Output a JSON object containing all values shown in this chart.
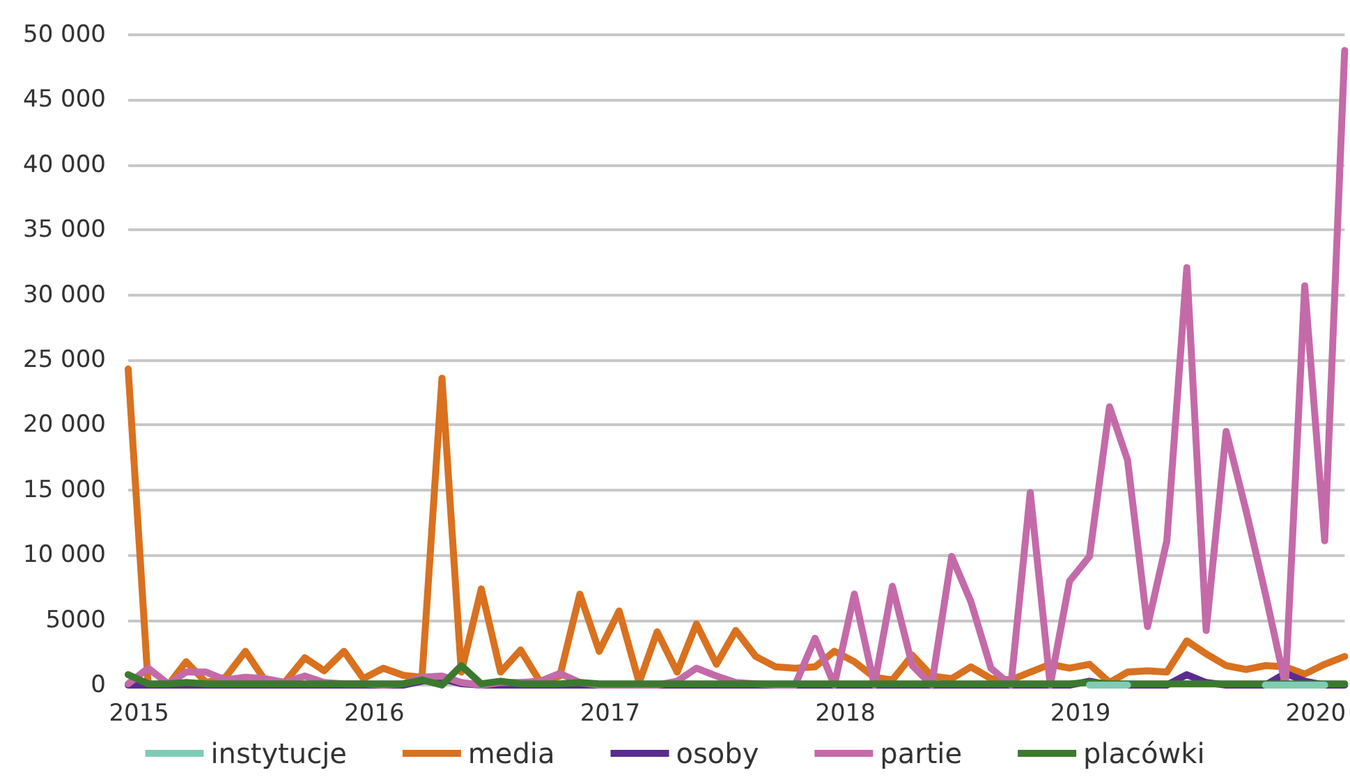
{
  "chart_data": {
    "type": "line",
    "x": [
      "2014-12-15",
      "2015-01-15",
      "2015-02-15",
      "2015-03-15",
      "2015-04-15",
      "2015-05-15",
      "2015-06-15",
      "2015-07-15",
      "2015-08-15",
      "2015-09-15",
      "2015-10-15",
      "2015-11-15",
      "2015-12-15",
      "2016-01-15",
      "2016-02-15",
      "2016-03-15",
      "2016-04-15",
      "2016-05-15",
      "2016-06-15",
      "2016-07-15",
      "2016-08-15",
      "2016-09-15",
      "2016-10-15",
      "2016-11-15",
      "2016-12-15",
      "2017-01-15",
      "2017-02-15",
      "2017-03-15",
      "2017-04-15",
      "2017-05-15",
      "2017-06-15",
      "2017-07-15",
      "2017-08-15",
      "2017-09-15",
      "2017-10-15",
      "2017-11-15",
      "2017-12-15",
      "2018-01-15",
      "2018-02-15",
      "2018-03-15",
      "2018-04-15",
      "2018-05-15",
      "2018-06-15",
      "2018-07-15",
      "2018-08-15",
      "2018-09-15",
      "2018-10-15",
      "2018-11-15",
      "2018-12-15",
      "2019-01-15",
      "2019-02-15",
      "2019-03-15",
      "2019-04-15",
      "2019-05-15",
      "2019-06-15",
      "2019-07-15",
      "2019-08-15",
      "2019-09-15",
      "2019-10-15",
      "2019-11-15",
      "2019-12-15",
      "2020-01-15",
      "2020-02-15"
    ],
    "series": [
      {
        "name": "instytucje",
        "color": "#80cbb5",
        "values": [
          null,
          null,
          null,
          null,
          null,
          null,
          null,
          null,
          null,
          null,
          null,
          null,
          null,
          null,
          null,
          null,
          null,
          null,
          null,
          null,
          null,
          null,
          null,
          null,
          null,
          null,
          null,
          null,
          null,
          null,
          null,
          null,
          null,
          null,
          null,
          null,
          null,
          null,
          null,
          null,
          null,
          null,
          null,
          null,
          null,
          null,
          null,
          null,
          null,
          0,
          0,
          0,
          null,
          null,
          null,
          null,
          null,
          null,
          0,
          0,
          0,
          0,
          null
        ]
      },
      {
        "name": "media",
        "color": "#d9711f",
        "values": [
          24300,
          0,
          0,
          1800,
          200,
          600,
          2600,
          400,
          200,
          2100,
          1100,
          2600,
          500,
          1300,
          750,
          600,
          23600,
          1000,
          7400,
          1000,
          2700,
          200,
          700,
          7000,
          2600,
          5700,
          200,
          4100,
          1000,
          4700,
          1600,
          4200,
          2200,
          1400,
          1300,
          1400,
          2600,
          1800,
          600,
          400,
          2300,
          700,
          500,
          1400,
          500,
          400,
          1000,
          1600,
          1300,
          1600,
          200,
          1000,
          1100,
          1000,
          3400,
          2400,
          1500,
          1200,
          1500,
          1400,
          850,
          1600,
          2200
        ]
      },
      {
        "name": "osoby",
        "color": "#5b2c8f",
        "values": [
          0,
          0,
          0,
          0,
          0,
          0,
          0,
          0,
          0,
          0,
          0,
          0,
          0,
          0,
          0,
          300,
          500,
          100,
          0,
          0,
          0,
          0,
          0,
          0,
          0,
          0,
          0,
          0,
          0,
          0,
          0,
          0,
          0,
          0,
          0,
          0,
          0,
          0,
          0,
          0,
          0,
          0,
          0,
          0,
          0,
          0,
          0,
          0,
          0,
          300,
          0,
          0,
          0,
          0,
          800,
          200,
          0,
          0,
          0,
          900,
          300,
          0,
          0
        ]
      },
      {
        "name": "partie",
        "color": "#c46aa9",
        "values": [
          100,
          1300,
          100,
          1000,
          1000,
          400,
          600,
          500,
          200,
          700,
          200,
          100,
          100,
          0,
          100,
          600,
          700,
          200,
          0,
          200,
          200,
          300,
          900,
          200,
          0,
          0,
          0,
          0,
          300,
          1300,
          700,
          200,
          100,
          0,
          0,
          3600,
          0,
          7000,
          0,
          7600,
          1500,
          0,
          9900,
          6400,
          1300,
          0,
          14800,
          0,
          8000,
          9900,
          21400,
          17300,
          4500,
          11100,
          32100,
          4200,
          19500,
          13400,
          7000,
          0,
          30700,
          11100,
          48800
        ]
      },
      {
        "name": "placówki",
        "color": "#3b7a2e",
        "values": [
          800,
          100,
          100,
          200,
          100,
          100,
          100,
          100,
          100,
          100,
          100,
          100,
          100,
          100,
          100,
          400,
          0,
          1500,
          100,
          300,
          100,
          100,
          100,
          200,
          100,
          100,
          100,
          100,
          100,
          100,
          100,
          100,
          100,
          100,
          100,
          100,
          100,
          100,
          100,
          100,
          100,
          100,
          100,
          100,
          100,
          100,
          100,
          100,
          100,
          200,
          100,
          100,
          100,
          100,
          100,
          100,
          100,
          100,
          100,
          100,
          100,
          100,
          100
        ]
      }
    ],
    "xlim": [
      "2014-12-15",
      "2020-02-15"
    ],
    "xticks": [
      "2015",
      "2016",
      "2017",
      "2018",
      "2019",
      "2020"
    ],
    "ylim": [
      0,
      50000
    ],
    "yticks": [
      0,
      {
        "value": 5000,
        "label": "5000"
      },
      {
        "value": 10000,
        "label": "10 000"
      },
      {
        "value": 15000,
        "label": "15 000"
      },
      {
        "value": 20000,
        "label": "20 000"
      },
      {
        "value": 25000,
        "label": "25 000"
      },
      {
        "value": 30000,
        "label": "30 000"
      },
      {
        "value": 35000,
        "label": "35 000"
      },
      {
        "value": 40000,
        "label": "40 000"
      },
      {
        "value": 45000,
        "label": "45 000"
      },
      {
        "value": 50000,
        "label": "50 000"
      }
    ],
    "grid": "y",
    "legend": "bottom",
    "marker": "none",
    "line_style": "solid"
  }
}
